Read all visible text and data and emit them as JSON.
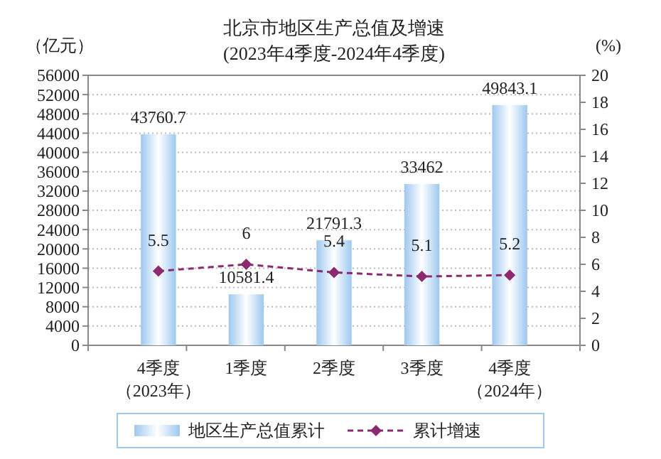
{
  "chart_data": {
    "type": "bar",
    "title": "北京市地区生产总值及增速",
    "subtitle": "(2023年4季度-2024年4季度)",
    "ylabel": "（亿元）",
    "y2label": "(%)",
    "categories": [
      "4季度（2023年）",
      "1季度",
      "2季度",
      "3季度",
      "4季度（2024年）"
    ],
    "series": [
      {
        "name": "地区生产总值累计",
        "color": "#9dc8f0",
        "values": [
          43760.7,
          10581.4,
          21791.3,
          33462,
          49843.1
        ]
      },
      {
        "name": "累计增速",
        "type": "line",
        "axis": "y2",
        "color": "#8b2a6e",
        "marker": "diamond",
        "line_style": "dashed",
        "values": [
          5.5,
          6,
          5.4,
          5.1,
          5.2
        ]
      }
    ],
    "ylim": [
      0,
      56000
    ],
    "yticks": [
      0,
      4000,
      8000,
      12000,
      16000,
      20000,
      24000,
      28000,
      32000,
      36000,
      40000,
      44000,
      48000,
      52000,
      56000
    ],
    "y2lim": [
      0,
      20
    ],
    "y2ticks": [
      0,
      2,
      4,
      6,
      8,
      10,
      12,
      14,
      16,
      18,
      20
    ],
    "grid": "y",
    "legend": "bottom",
    "data_labels": true
  }
}
